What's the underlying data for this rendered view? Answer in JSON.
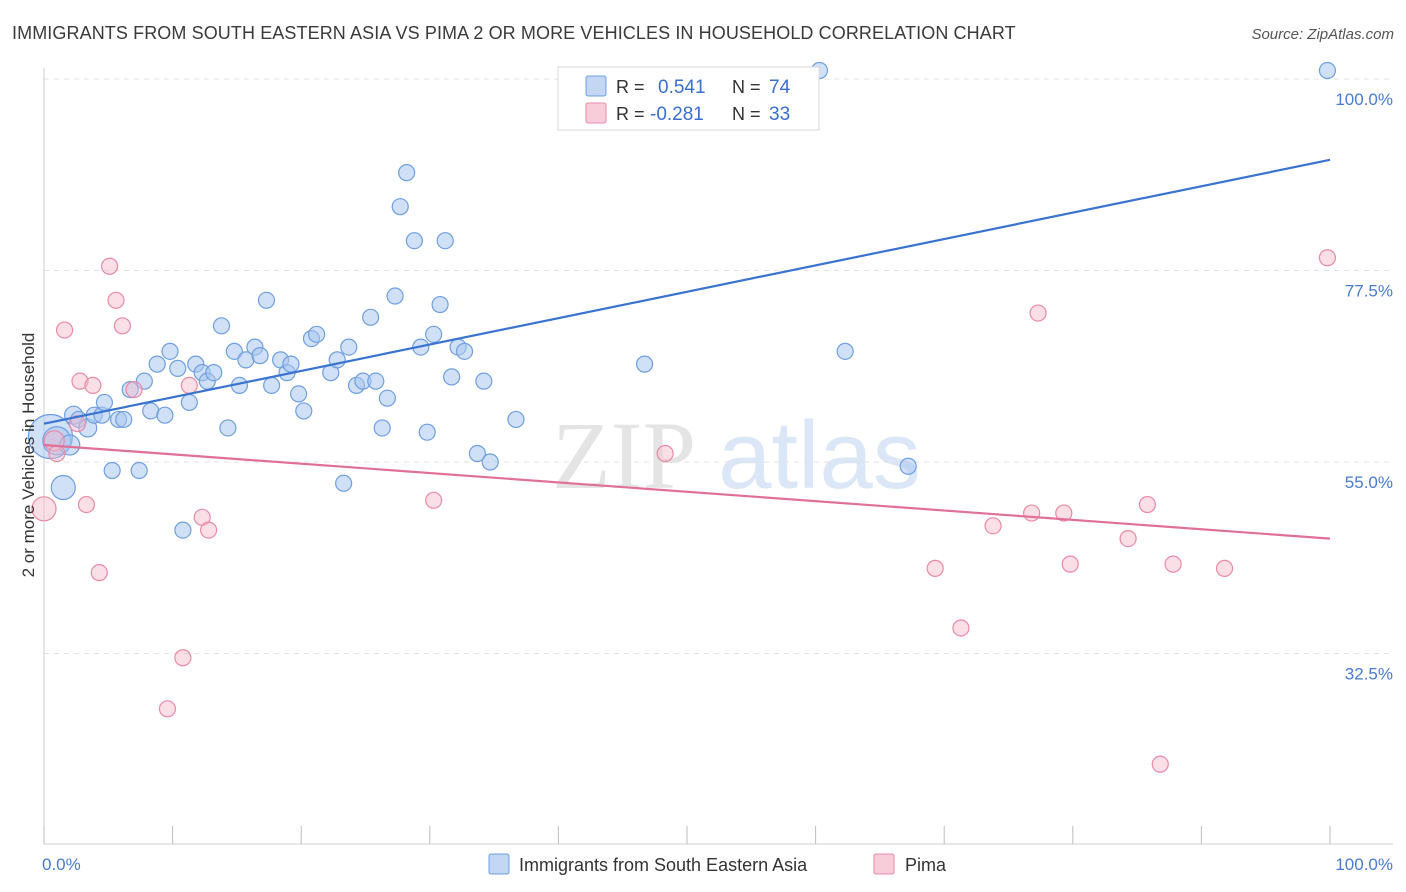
{
  "chart_data": {
    "type": "scatter",
    "title": "IMMIGRANTS FROM SOUTH EASTERN ASIA VS PIMA 2 OR MORE VEHICLES IN HOUSEHOLD CORRELATION CHART",
    "source": "Source: ZipAtlas.com",
    "xlabel": "",
    "ylabel": "2 or more Vehicles in Household",
    "xlim": [
      0,
      100
    ],
    "ylim": [
      15,
      100
    ],
    "x_tick_labels": [
      "0.0%",
      "100.0%"
    ],
    "y_tick_labels": [
      "100.0%",
      "77.5%",
      "55.0%",
      "32.5%"
    ],
    "y_ticks": [
      100,
      77.5,
      55,
      32.5
    ],
    "grid": true,
    "colors": {
      "blue": "#3a74d0",
      "pink": "#e07098"
    },
    "legend": {
      "position": "top-center",
      "rows": [
        {
          "r_label": "R =",
          "r_value": "0.541",
          "n_label": "N =",
          "n_value": "74"
        },
        {
          "r_label": "R =",
          "r_value": "-0.281",
          "n_label": "N =",
          "n_value": "33"
        }
      ]
    },
    "bottom_legend": [
      "Immigrants from South Eastern Asia",
      "Pima"
    ],
    "watermark": {
      "zip": "ZIP",
      "atlas": "atlas"
    },
    "series": [
      {
        "name": "Immigrants from South Eastern Asia",
        "trend": [
          [
            0,
            59.5
          ],
          [
            100,
            90.5
          ]
        ],
        "points": [
          [
            0.5,
            58,
            22
          ],
          [
            1.0,
            57.5,
            14
          ],
          [
            1.5,
            52,
            12
          ],
          [
            2.0,
            57,
            10
          ],
          [
            2.3,
            60.5,
            9
          ],
          [
            2.7,
            60,
            8
          ],
          [
            3.4,
            59,
            9
          ],
          [
            3.9,
            60.5,
            8
          ],
          [
            4.5,
            60.5,
            8
          ],
          [
            4.7,
            62,
            8
          ],
          [
            5.3,
            54,
            8
          ],
          [
            5.8,
            60,
            8
          ],
          [
            6.2,
            60,
            8
          ],
          [
            6.7,
            63.5,
            8
          ],
          [
            7.4,
            54,
            8
          ],
          [
            7.8,
            64.5,
            8
          ],
          [
            8.3,
            61,
            8
          ],
          [
            8.8,
            66.5,
            8
          ],
          [
            9.4,
            60.5,
            8
          ],
          [
            9.8,
            68,
            8
          ],
          [
            10.4,
            66,
            8
          ],
          [
            10.8,
            47,
            8
          ],
          [
            11.3,
            62,
            8
          ],
          [
            11.8,
            66.5,
            8
          ],
          [
            12.3,
            65.5,
            8
          ],
          [
            12.7,
            64.5,
            8
          ],
          [
            13.2,
            65.5,
            8
          ],
          [
            13.8,
            71,
            8
          ],
          [
            14.3,
            59,
            8
          ],
          [
            14.8,
            68,
            8
          ],
          [
            15.2,
            64,
            8
          ],
          [
            15.7,
            67,
            8
          ],
          [
            16.4,
            68.5,
            8
          ],
          [
            16.8,
            67.5,
            8
          ],
          [
            17.3,
            74,
            8
          ],
          [
            17.7,
            64,
            8
          ],
          [
            18.4,
            67,
            8
          ],
          [
            18.9,
            65.5,
            8
          ],
          [
            19.2,
            66.5,
            8
          ],
          [
            19.8,
            63,
            8
          ],
          [
            20.2,
            61,
            8
          ],
          [
            20.8,
            69.5,
            8
          ],
          [
            21.2,
            70,
            8
          ],
          [
            22.3,
            65.5,
            8
          ],
          [
            22.8,
            67,
            8
          ],
          [
            23.3,
            52.5,
            8
          ],
          [
            23.7,
            68.5,
            8
          ],
          [
            24.3,
            64,
            8
          ],
          [
            24.8,
            64.5,
            8
          ],
          [
            25.4,
            72,
            8
          ],
          [
            25.8,
            64.5,
            8
          ],
          [
            26.3,
            59,
            8
          ],
          [
            26.7,
            62.5,
            8
          ],
          [
            27.3,
            74.5,
            8
          ],
          [
            27.7,
            85,
            8
          ],
          [
            28.2,
            89,
            8
          ],
          [
            28.8,
            81,
            8
          ],
          [
            29.3,
            68.5,
            8
          ],
          [
            29.8,
            58.5,
            8
          ],
          [
            30.3,
            70,
            8
          ],
          [
            30.8,
            73.5,
            8
          ],
          [
            31.2,
            81,
            8
          ],
          [
            31.7,
            65,
            8
          ],
          [
            32.2,
            68.5,
            8
          ],
          [
            32.7,
            68,
            8
          ],
          [
            33.7,
            56,
            8
          ],
          [
            34.2,
            64.5,
            8
          ],
          [
            34.7,
            55,
            8
          ],
          [
            36.7,
            60,
            8
          ],
          [
            46.7,
            66.5,
            8
          ],
          [
            60.3,
            101,
            8
          ],
          [
            62.3,
            68,
            8
          ],
          [
            67.2,
            54.5,
            8
          ],
          [
            99.8,
            101,
            8
          ]
        ]
      },
      {
        "name": "Pima",
        "trend": [
          [
            0,
            57
          ],
          [
            100,
            46
          ]
        ],
        "points": [
          [
            0.0,
            49.5,
            12
          ],
          [
            0.8,
            57.5,
            10
          ],
          [
            1.0,
            56,
            8
          ],
          [
            1.6,
            70.5,
            8
          ],
          [
            2.6,
            59.5,
            8
          ],
          [
            2.8,
            64.5,
            8
          ],
          [
            3.3,
            50,
            8
          ],
          [
            3.8,
            64,
            8
          ],
          [
            4.3,
            42,
            8
          ],
          [
            5.1,
            78,
            8
          ],
          [
            5.6,
            74,
            8
          ],
          [
            6.1,
            71,
            8
          ],
          [
            7.0,
            63.5,
            8
          ],
          [
            9.6,
            26,
            8
          ],
          [
            10.8,
            32,
            8
          ],
          [
            11.3,
            64,
            8
          ],
          [
            12.3,
            48.5,
            8
          ],
          [
            12.8,
            47,
            8
          ],
          [
            30.3,
            50.5,
            8
          ],
          [
            48.3,
            56,
            8
          ],
          [
            69.3,
            42.5,
            8
          ],
          [
            71.3,
            35.5,
            8
          ],
          [
            73.8,
            47.5,
            8
          ],
          [
            76.8,
            49,
            8
          ],
          [
            77.3,
            72.5,
            8
          ],
          [
            79.3,
            49,
            8
          ],
          [
            79.8,
            43,
            8
          ],
          [
            84.3,
            46,
            8
          ],
          [
            85.8,
            50,
            8
          ],
          [
            86.8,
            19.5,
            8
          ],
          [
            87.8,
            43,
            8
          ],
          [
            91.8,
            42.5,
            8
          ],
          [
            99.8,
            79,
            8
          ]
        ]
      }
    ]
  }
}
